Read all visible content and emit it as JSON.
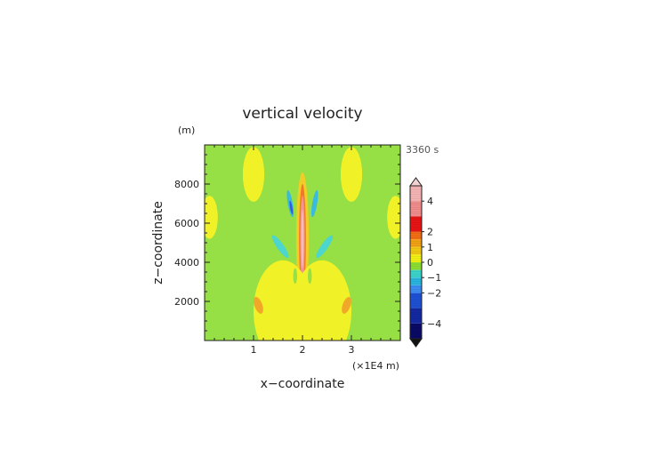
{
  "chart_data": {
    "type": "heatmap",
    "title": "vertical velocity",
    "time_label": "3360 s",
    "xlabel": "x−coordinate",
    "ylabel": "z−coordinate",
    "y_unit": "(m)",
    "x_unit": "(×1E4 m)",
    "xlim": [
      0,
      4
    ],
    "ylim": [
      0,
      10000
    ],
    "x_ticks": [
      1,
      2,
      3
    ],
    "x_tick_labels": [
      "1",
      "2",
      "3"
    ],
    "y_ticks": [
      2000,
      4000,
      6000,
      8000
    ],
    "y_tick_labels": [
      "2000",
      "4000",
      "6000",
      "8000"
    ],
    "colorbar": {
      "min": -5.0,
      "max": 5.0,
      "extend": "both",
      "tick_values": [
        4,
        2,
        1,
        0,
        -1,
        -2,
        -4
      ],
      "tick_labels": [
        "4",
        "2",
        "1",
        "0",
        "−1",
        "−2",
        "−4"
      ],
      "levels": [
        {
          "low": -5.0,
          "high": -4.0,
          "color": "#0a0a64"
        },
        {
          "low": -4.0,
          "high": -3.0,
          "color": "#1428a0"
        },
        {
          "low": -3.0,
          "high": -2.0,
          "color": "#1e50d2"
        },
        {
          "low": -2.0,
          "high": -1.5,
          "color": "#3c8cf0"
        },
        {
          "low": -1.5,
          "high": -1.0,
          "color": "#28b4dc"
        },
        {
          "low": -1.0,
          "high": -0.5,
          "color": "#3cd2c8"
        },
        {
          "low": -0.5,
          "high": 0.0,
          "color": "#8cdc32"
        },
        {
          "low": 0.0,
          "high": 0.5,
          "color": "#f0f014"
        },
        {
          "low": 0.5,
          "high": 1.0,
          "color": "#f0c814"
        },
        {
          "low": 1.0,
          "high": 1.5,
          "color": "#f0a014"
        },
        {
          "low": 1.5,
          "high": 2.0,
          "color": "#f06e14"
        },
        {
          "low": 2.0,
          "high": 3.0,
          "color": "#e61414"
        },
        {
          "low": 3.0,
          "high": 4.0,
          "color": "#f08c8c"
        },
        {
          "low": 4.0,
          "high": 5.0,
          "color": "#f5b4b4"
        }
      ]
    },
    "background_color": "#8cdc32",
    "features": [
      {
        "shape": "ellipse",
        "cx": 2.0,
        "cy": 5200,
        "rx": 0.13,
        "ry": 3400,
        "rot": 0,
        "value": 0.7
      },
      {
        "shape": "ellipse",
        "cx": 2.0,
        "cy": 5200,
        "rx": 0.07,
        "ry": 2800,
        "rot": 0,
        "value": 1.7
      },
      {
        "shape": "ellipse",
        "cx": 2.0,
        "cy": 5200,
        "rx": 0.045,
        "ry": 2200,
        "rot": 0,
        "value": 3.5
      },
      {
        "shape": "ellipse",
        "cx": 2.0,
        "cy": 5200,
        "rx": 0.025,
        "ry": 1500,
        "rot": 0,
        "value": 4.5
      },
      {
        "shape": "ellipse",
        "cx": 0.1,
        "cy": 6300,
        "rx": 0.17,
        "ry": 1100,
        "rot": 0,
        "value": 0.3
      },
      {
        "shape": "ellipse",
        "cx": 3.9,
        "cy": 6300,
        "rx": 0.17,
        "ry": 1100,
        "rot": 0,
        "value": 0.3
      },
      {
        "shape": "ellipse",
        "cx": 1.0,
        "cy": 8500,
        "rx": 0.22,
        "ry": 1400,
        "rot": 0,
        "value": 0.3
      },
      {
        "shape": "ellipse",
        "cx": 3.0,
        "cy": 8500,
        "rx": 0.22,
        "ry": 1400,
        "rot": 0,
        "value": 0.3
      },
      {
        "shape": "ellipse",
        "cx": 1.6,
        "cy": 1500,
        "rx": 0.6,
        "ry": 2600,
        "rot": 0,
        "value": 0.3
      },
      {
        "shape": "ellipse",
        "cx": 2.4,
        "cy": 1500,
        "rx": 0.6,
        "ry": 2600,
        "rot": 0,
        "value": 0.3
      },
      {
        "shape": "ellipse",
        "cx": 1.55,
        "cy": 4800,
        "rx": 0.07,
        "ry": 700,
        "rot": -35,
        "value": -0.8
      },
      {
        "shape": "ellipse",
        "cx": 2.45,
        "cy": 4800,
        "rx": 0.07,
        "ry": 700,
        "rot": 35,
        "value": -0.8
      },
      {
        "shape": "ellipse",
        "cx": 1.75,
        "cy": 7000,
        "rx": 0.05,
        "ry": 700,
        "rot": -10,
        "value": -1.2
      },
      {
        "shape": "ellipse",
        "cx": 2.25,
        "cy": 7000,
        "rx": 0.05,
        "ry": 700,
        "rot": 10,
        "value": -1.2
      },
      {
        "shape": "ellipse",
        "cx": 1.77,
        "cy": 6800,
        "rx": 0.025,
        "ry": 350,
        "rot": -10,
        "value": -2.5
      },
      {
        "shape": "ellipse",
        "cx": 1.1,
        "cy": 1800,
        "rx": 0.08,
        "ry": 450,
        "rot": -20,
        "value": 1.2
      },
      {
        "shape": "ellipse",
        "cx": 2.9,
        "cy": 1800,
        "rx": 0.08,
        "ry": 450,
        "rot": 20,
        "value": 1.2
      },
      {
        "shape": "ellipse",
        "cx": 1.85,
        "cy": 3300,
        "rx": 0.04,
        "ry": 400,
        "rot": 0,
        "value": -0.3
      },
      {
        "shape": "ellipse",
        "cx": 2.15,
        "cy": 3300,
        "rx": 0.04,
        "ry": 400,
        "rot": 0,
        "value": -0.3
      }
    ]
  }
}
